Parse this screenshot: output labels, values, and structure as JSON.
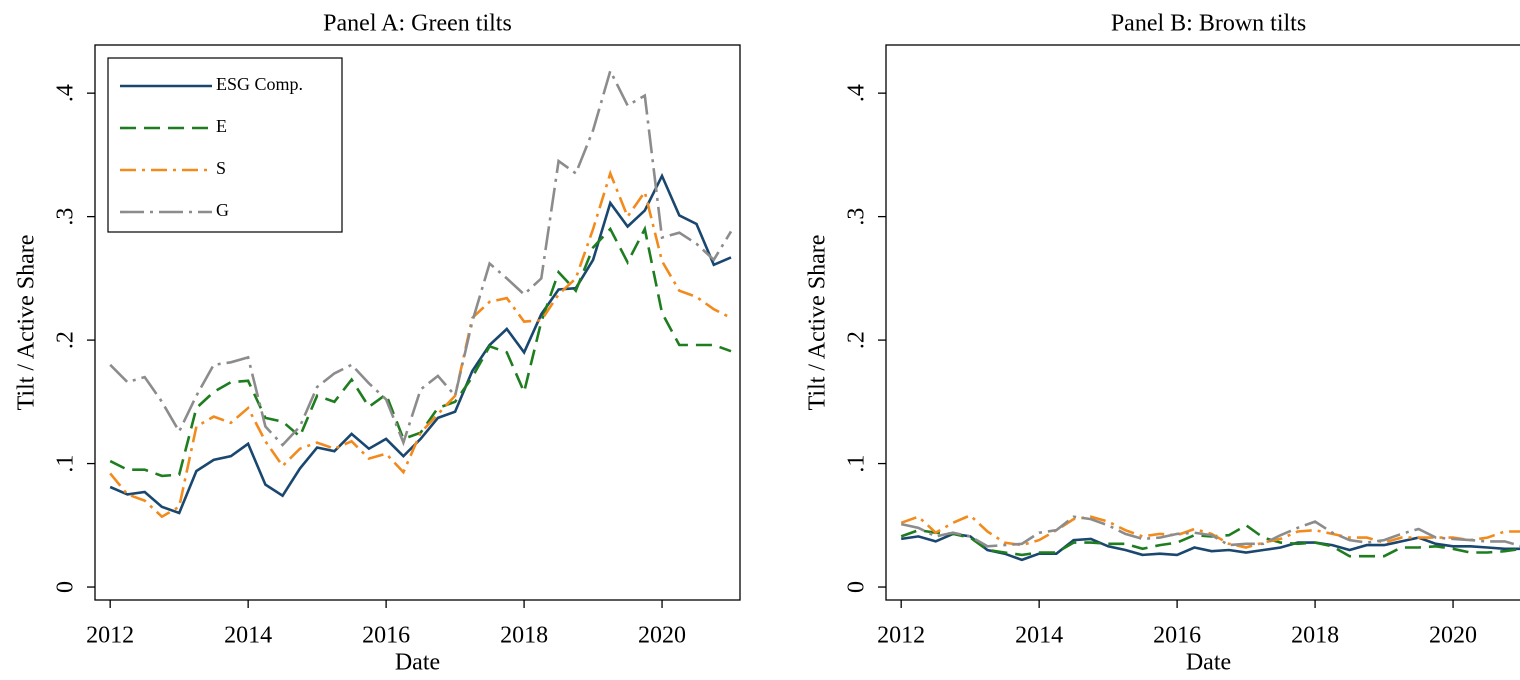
{
  "chart_data": [
    {
      "type": "line",
      "title": "Panel A: Green tilts",
      "xlabel": "Date",
      "ylabel": "Tilt / Active Share",
      "x": [
        2012,
        2012.25,
        2012.5,
        2012.75,
        2013,
        2013.25,
        2013.5,
        2013.75,
        2014,
        2014.25,
        2014.5,
        2014.75,
        2015,
        2015.25,
        2015.5,
        2015.75,
        2016,
        2016.25,
        2016.5,
        2016.75,
        2017,
        2017.25,
        2017.5,
        2017.75,
        2018,
        2018.25,
        2018.5,
        2018.75,
        2019,
        2019.25,
        2019.5,
        2019.75,
        2020,
        2020.25,
        2020.5,
        2020.75,
        2021
      ],
      "xlim": [
        2011.78,
        2021.13
      ],
      "xticks": [
        2012,
        2014,
        2016,
        2018,
        2020
      ],
      "ylim": [
        -0.0105,
        0.439
      ],
      "yticks": [
        0,
        {
          "value": 0.1,
          "label": ".1"
        },
        {
          "value": 0.2,
          "label": ".2"
        },
        {
          "value": 0.3,
          "label": ".3"
        },
        {
          "value": 0.4,
          "label": ".4"
        }
      ],
      "legend": "upper left",
      "series": [
        {
          "name": "ESG Comp.",
          "color": "#1a476f",
          "linestyle": "solid",
          "values": [
            0.081,
            0.075,
            0.077,
            0.065,
            0.06,
            0.094,
            0.103,
            0.106,
            0.116,
            0.083,
            0.074,
            0.096,
            0.113,
            0.11,
            0.124,
            0.112,
            0.12,
            0.106,
            0.12,
            0.137,
            0.142,
            0.175,
            0.196,
            0.209,
            0.19,
            0.221,
            0.241,
            0.242,
            0.265,
            0.311,
            0.292,
            0.305,
            0.333,
            0.301,
            0.294,
            0.261,
            0.267
          ]
        },
        {
          "name": "E",
          "color": "#1e7d1e",
          "linestyle": "dashed",
          "values": [
            0.102,
            0.095,
            0.095,
            0.09,
            0.091,
            0.145,
            0.158,
            0.166,
            0.167,
            0.137,
            0.134,
            0.122,
            0.155,
            0.15,
            0.168,
            0.146,
            0.156,
            0.12,
            0.125,
            0.145,
            0.15,
            0.17,
            0.195,
            0.19,
            0.158,
            0.215,
            0.255,
            0.24,
            0.275,
            0.29,
            0.263,
            0.29,
            0.222,
            0.196,
            0.196,
            0.196,
            0.191
          ]
        },
        {
          "name": "S",
          "color": "#f28a1c",
          "linestyle": "dashdot",
          "values": [
            0.092,
            0.075,
            0.07,
            0.057,
            0.065,
            0.13,
            0.138,
            0.133,
            0.145,
            0.118,
            0.098,
            0.112,
            0.117,
            0.112,
            0.118,
            0.104,
            0.108,
            0.093,
            0.125,
            0.14,
            0.155,
            0.218,
            0.231,
            0.234,
            0.215,
            0.216,
            0.237,
            0.25,
            0.29,
            0.335,
            0.3,
            0.32,
            0.264,
            0.24,
            0.235,
            0.225,
            0.218
          ]
        },
        {
          "name": "G",
          "color": "#8c8c8c",
          "linestyle": "longdashdot",
          "values": [
            0.18,
            0.166,
            0.17,
            0.15,
            0.126,
            0.155,
            0.18,
            0.182,
            0.186,
            0.13,
            0.115,
            0.13,
            0.162,
            0.173,
            0.18,
            0.165,
            0.152,
            0.117,
            0.16,
            0.171,
            0.155,
            0.215,
            0.262,
            0.25,
            0.237,
            0.25,
            0.345,
            0.335,
            0.37,
            0.418,
            0.39,
            0.398,
            0.283,
            0.287,
            0.278,
            0.265,
            0.288
          ]
        }
      ]
    },
    {
      "type": "line",
      "title": "Panel B: Brown tilts",
      "xlabel": "Date",
      "ylabel": "Tilt / Active Share",
      "x": [
        2012,
        2012.25,
        2012.5,
        2012.75,
        2013,
        2013.25,
        2013.5,
        2013.75,
        2014,
        2014.25,
        2014.5,
        2014.75,
        2015,
        2015.25,
        2015.5,
        2015.75,
        2016,
        2016.25,
        2016.5,
        2016.75,
        2017,
        2017.25,
        2017.5,
        2017.75,
        2018,
        2018.25,
        2018.5,
        2018.75,
        2019,
        2019.25,
        2019.5,
        2019.75,
        2020,
        2020.25,
        2020.5,
        2020.75,
        2021
      ],
      "xlim": [
        2011.78,
        2021.13
      ],
      "xticks": [
        2012,
        2014,
        2016,
        2018,
        2020
      ],
      "ylim": [
        -0.0105,
        0.439
      ],
      "yticks": [
        0,
        {
          "value": 0.1,
          "label": ".1"
        },
        {
          "value": 0.2,
          "label": ".2"
        },
        {
          "value": 0.3,
          "label": ".3"
        },
        {
          "value": 0.4,
          "label": ".4"
        }
      ],
      "series": [
        {
          "color": "#1a476f",
          "linestyle": "solid",
          "values": [
            0.039,
            0.041,
            0.037,
            0.043,
            0.041,
            0.03,
            0.027,
            0.022,
            0.027,
            0.027,
            0.038,
            0.039,
            0.033,
            0.03,
            0.026,
            0.027,
            0.026,
            0.032,
            0.029,
            0.03,
            0.028,
            0.03,
            0.032,
            0.036,
            0.036,
            0.034,
            0.03,
            0.034,
            0.034,
            0.037,
            0.04,
            0.035,
            0.033,
            0.033,
            0.032,
            0.031,
            0.031
          ]
        },
        {
          "color": "#1e7d1e",
          "linestyle": "dashed",
          "values": [
            0.041,
            0.046,
            0.044,
            0.043,
            0.04,
            0.03,
            0.028,
            0.026,
            0.028,
            0.028,
            0.036,
            0.036,
            0.035,
            0.035,
            0.031,
            0.034,
            0.036,
            0.042,
            0.041,
            0.042,
            0.05,
            0.04,
            0.036,
            0.035,
            0.036,
            0.033,
            0.025,
            0.025,
            0.025,
            0.032,
            0.032,
            0.033,
            0.031,
            0.028,
            0.028,
            0.029,
            0.031
          ]
        },
        {
          "color": "#f28a1c",
          "linestyle": "dashdot",
          "values": [
            0.052,
            0.057,
            0.044,
            0.052,
            0.058,
            0.045,
            0.036,
            0.034,
            0.038,
            0.046,
            0.055,
            0.057,
            0.053,
            0.046,
            0.041,
            0.043,
            0.042,
            0.047,
            0.043,
            0.035,
            0.032,
            0.036,
            0.039,
            0.045,
            0.046,
            0.043,
            0.04,
            0.04,
            0.036,
            0.04,
            0.04,
            0.04,
            0.04,
            0.038,
            0.04,
            0.045,
            0.045
          ]
        },
        {
          "color": "#8c8c8c",
          "linestyle": "longdashdot",
          "values": [
            0.051,
            0.048,
            0.041,
            0.044,
            0.041,
            0.033,
            0.034,
            0.035,
            0.044,
            0.046,
            0.057,
            0.055,
            0.05,
            0.043,
            0.039,
            0.04,
            0.043,
            0.044,
            0.042,
            0.034,
            0.035,
            0.035,
            0.042,
            0.048,
            0.053,
            0.044,
            0.038,
            0.036,
            0.038,
            0.043,
            0.047,
            0.04,
            0.039,
            0.038,
            0.037,
            0.037,
            0.033
          ]
        }
      ]
    }
  ]
}
